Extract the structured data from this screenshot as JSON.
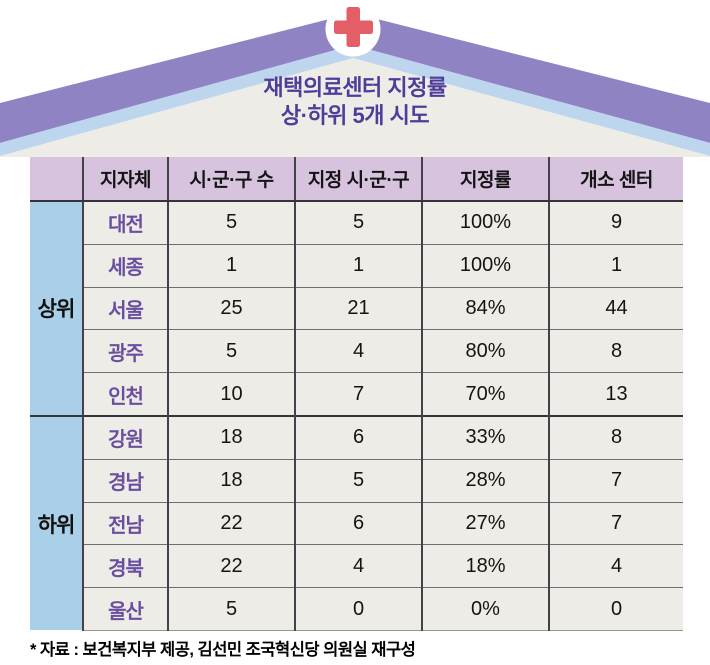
{
  "header": {
    "title_line1": "재택의료센터 지정률",
    "title_line2": "상·하위 5개 시도"
  },
  "table": {
    "columns": [
      "지자체",
      "시·군·구 수",
      "지정 시·군·구",
      "지정률",
      "개소 센터"
    ],
    "groups": [
      {
        "label": "상위",
        "rows": [
          {
            "region": "대전",
            "districts": "5",
            "designated": "5",
            "rate": "100%",
            "centers": "9"
          },
          {
            "region": "세종",
            "districts": "1",
            "designated": "1",
            "rate": "100%",
            "centers": "1"
          },
          {
            "region": "서울",
            "districts": "25",
            "designated": "21",
            "rate": "84%",
            "centers": "44"
          },
          {
            "region": "광주",
            "districts": "5",
            "designated": "4",
            "rate": "80%",
            "centers": "8"
          },
          {
            "region": "인천",
            "districts": "10",
            "designated": "7",
            "rate": "70%",
            "centers": "13"
          }
        ]
      },
      {
        "label": "하위",
        "rows": [
          {
            "region": "강원",
            "districts": "18",
            "designated": "6",
            "rate": "33%",
            "centers": "8"
          },
          {
            "region": "경남",
            "districts": "18",
            "designated": "5",
            "rate": "28%",
            "centers": "7"
          },
          {
            "region": "전남",
            "districts": "22",
            "designated": "6",
            "rate": "27%",
            "centers": "7"
          },
          {
            "region": "경북",
            "districts": "22",
            "designated": "4",
            "rate": "18%",
            "centers": "4"
          },
          {
            "region": "울산",
            "districts": "5",
            "designated": "0",
            "rate": "0%",
            "centers": "0"
          }
        ]
      }
    ]
  },
  "footer": {
    "source_note": "* 자료 : 보건복지부 제공, 김선민 조국혁신당 의원실 재구성"
  },
  "colors": {
    "roof_purple": "#8f83c3",
    "roof_blue": "#bed5ee",
    "house_fill": "#edece6",
    "cross_red": "#e35e66",
    "badge_white": "#ffffff",
    "title_purple": "#4e3d9a",
    "header_bg": "#d7c3de",
    "group_bg": "#a9cfe9",
    "cell_bg": "#eeece7",
    "region_text": "#6a4fa0"
  },
  "chart_data": {
    "type": "table",
    "title": "재택의료센터 지정률 상·하위 5개 시도",
    "columns": [
      "",
      "지자체",
      "시·군·구 수",
      "지정 시·군·구",
      "지정률",
      "개소 센터"
    ],
    "rows": [
      [
        "상위",
        "대전",
        5,
        5,
        "100%",
        9
      ],
      [
        "상위",
        "세종",
        1,
        1,
        "100%",
        1
      ],
      [
        "상위",
        "서울",
        25,
        21,
        "84%",
        44
      ],
      [
        "상위",
        "광주",
        5,
        4,
        "80%",
        8
      ],
      [
        "상위",
        "인천",
        10,
        7,
        "70%",
        13
      ],
      [
        "하위",
        "강원",
        18,
        6,
        "33%",
        8
      ],
      [
        "하위",
        "경남",
        18,
        5,
        "28%",
        7
      ],
      [
        "하위",
        "전남",
        22,
        6,
        "27%",
        7
      ],
      [
        "하위",
        "경북",
        22,
        4,
        "18%",
        4
      ],
      [
        "하위",
        "울산",
        5,
        0,
        "0%",
        0
      ]
    ],
    "source": "* 자료 : 보건복지부 제공, 김선민 조국혁신당 의원실 재구성"
  }
}
